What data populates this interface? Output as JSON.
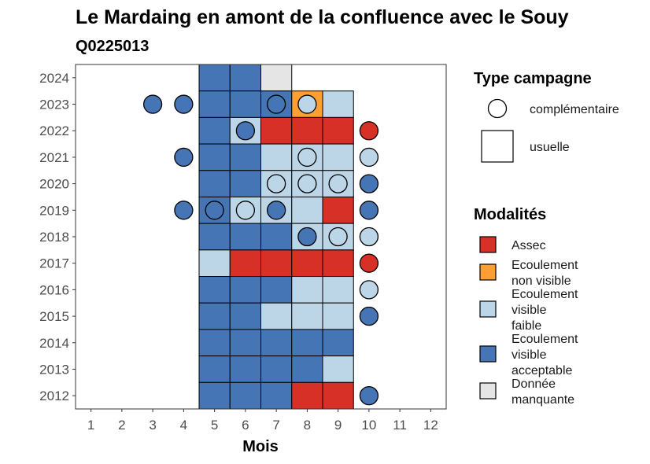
{
  "chart_data": {
    "type": "heatmap",
    "title": "Le Mardaing en amont de la confluence avec le Souy",
    "subtitle": "Q0225013",
    "xlabel": "Mois",
    "ylabel": "",
    "x_ticks": [
      "1",
      "2",
      "3",
      "4",
      "5",
      "6",
      "7",
      "8",
      "9",
      "10",
      "11",
      "12"
    ],
    "y_ticks": [
      "2012",
      "2013",
      "2014",
      "2015",
      "2016",
      "2017",
      "2018",
      "2019",
      "2020",
      "2021",
      "2022",
      "2023",
      "2024"
    ],
    "xlim": [
      0.5,
      12.5
    ],
    "ylim": [
      2011.5,
      2024.5
    ],
    "grid": false,
    "legend_position": "right",
    "colors": {
      "Assec": "#d73027",
      "Ecoulement non visible": "#fd9f33",
      "Ecoulement visible faible": "#bcd6e7",
      "Ecoulement visible acceptable": "#4575b4",
      "Donnée manquante": "#e5e5e5"
    },
    "usuelle": [
      {
        "year": 2024,
        "month": 5,
        "modalite": "Ecoulement visible acceptable"
      },
      {
        "year": 2024,
        "month": 6,
        "modalite": "Ecoulement visible acceptable"
      },
      {
        "year": 2024,
        "month": 7,
        "modalite": "Donnée manquante"
      },
      {
        "year": 2023,
        "month": 5,
        "modalite": "Ecoulement visible acceptable"
      },
      {
        "year": 2023,
        "month": 6,
        "modalite": "Ecoulement visible acceptable"
      },
      {
        "year": 2023,
        "month": 7,
        "modalite": "Ecoulement visible acceptable"
      },
      {
        "year": 2023,
        "month": 8,
        "modalite": "Ecoulement non visible"
      },
      {
        "year": 2023,
        "month": 9,
        "modalite": "Ecoulement visible faible"
      },
      {
        "year": 2022,
        "month": 5,
        "modalite": "Ecoulement visible acceptable"
      },
      {
        "year": 2022,
        "month": 6,
        "modalite": "Ecoulement visible faible"
      },
      {
        "year": 2022,
        "month": 7,
        "modalite": "Assec"
      },
      {
        "year": 2022,
        "month": 8,
        "modalite": "Assec"
      },
      {
        "year": 2022,
        "month": 9,
        "modalite": "Assec"
      },
      {
        "year": 2021,
        "month": 5,
        "modalite": "Ecoulement visible acceptable"
      },
      {
        "year": 2021,
        "month": 6,
        "modalite": "Ecoulement visible acceptable"
      },
      {
        "year": 2021,
        "month": 7,
        "modalite": "Ecoulement visible faible"
      },
      {
        "year": 2021,
        "month": 8,
        "modalite": "Ecoulement visible faible"
      },
      {
        "year": 2021,
        "month": 9,
        "modalite": "Ecoulement visible faible"
      },
      {
        "year": 2020,
        "month": 5,
        "modalite": "Ecoulement visible acceptable"
      },
      {
        "year": 2020,
        "month": 6,
        "modalite": "Ecoulement visible acceptable"
      },
      {
        "year": 2020,
        "month": 7,
        "modalite": "Ecoulement visible faible"
      },
      {
        "year": 2020,
        "month": 8,
        "modalite": "Ecoulement visible faible"
      },
      {
        "year": 2020,
        "month": 9,
        "modalite": "Ecoulement visible faible"
      },
      {
        "year": 2019,
        "month": 5,
        "modalite": "Ecoulement visible acceptable"
      },
      {
        "year": 2019,
        "month": 6,
        "modalite": "Ecoulement visible faible"
      },
      {
        "year": 2019,
        "month": 7,
        "modalite": "Ecoulement visible faible"
      },
      {
        "year": 2019,
        "month": 8,
        "modalite": "Ecoulement visible faible"
      },
      {
        "year": 2019,
        "month": 9,
        "modalite": "Assec"
      },
      {
        "year": 2018,
        "month": 5,
        "modalite": "Ecoulement visible acceptable"
      },
      {
        "year": 2018,
        "month": 6,
        "modalite": "Ecoulement visible acceptable"
      },
      {
        "year": 2018,
        "month": 7,
        "modalite": "Ecoulement visible acceptable"
      },
      {
        "year": 2018,
        "month": 8,
        "modalite": "Ecoulement visible faible"
      },
      {
        "year": 2018,
        "month": 9,
        "modalite": "Ecoulement visible faible"
      },
      {
        "year": 2017,
        "month": 5,
        "modalite": "Ecoulement visible faible"
      },
      {
        "year": 2017,
        "month": 6,
        "modalite": "Assec"
      },
      {
        "year": 2017,
        "month": 7,
        "modalite": "Assec"
      },
      {
        "year": 2017,
        "month": 8,
        "modalite": "Assec"
      },
      {
        "year": 2017,
        "month": 9,
        "modalite": "Assec"
      },
      {
        "year": 2016,
        "month": 5,
        "modalite": "Ecoulement visible acceptable"
      },
      {
        "year": 2016,
        "month": 6,
        "modalite": "Ecoulement visible acceptable"
      },
      {
        "year": 2016,
        "month": 7,
        "modalite": "Ecoulement visible acceptable"
      },
      {
        "year": 2016,
        "month": 8,
        "modalite": "Ecoulement visible faible"
      },
      {
        "year": 2016,
        "month": 9,
        "modalite": "Ecoulement visible faible"
      },
      {
        "year": 2015,
        "month": 5,
        "modalite": "Ecoulement visible acceptable"
      },
      {
        "year": 2015,
        "month": 6,
        "modalite": "Ecoulement visible acceptable"
      },
      {
        "year": 2015,
        "month": 7,
        "modalite": "Ecoulement visible faible"
      },
      {
        "year": 2015,
        "month": 8,
        "modalite": "Ecoulement visible faible"
      },
      {
        "year": 2015,
        "month": 9,
        "modalite": "Ecoulement visible faible"
      },
      {
        "year": 2014,
        "month": 5,
        "modalite": "Ecoulement visible acceptable"
      },
      {
        "year": 2014,
        "month": 6,
        "modalite": "Ecoulement visible acceptable"
      },
      {
        "year": 2014,
        "month": 7,
        "modalite": "Ecoulement visible acceptable"
      },
      {
        "year": 2014,
        "month": 8,
        "modalite": "Ecoulement visible acceptable"
      },
      {
        "year": 2014,
        "month": 9,
        "modalite": "Ecoulement visible acceptable"
      },
      {
        "year": 2013,
        "month": 5,
        "modalite": "Ecoulement visible acceptable"
      },
      {
        "year": 2013,
        "month": 6,
        "modalite": "Ecoulement visible acceptable"
      },
      {
        "year": 2013,
        "month": 7,
        "modalite": "Ecoulement visible acceptable"
      },
      {
        "year": 2013,
        "month": 8,
        "modalite": "Ecoulement visible acceptable"
      },
      {
        "year": 2013,
        "month": 9,
        "modalite": "Ecoulement visible faible"
      },
      {
        "year": 2012,
        "month": 5,
        "modalite": "Ecoulement visible acceptable"
      },
      {
        "year": 2012,
        "month": 6,
        "modalite": "Ecoulement visible acceptable"
      },
      {
        "year": 2012,
        "month": 7,
        "modalite": "Ecoulement visible acceptable"
      },
      {
        "year": 2012,
        "month": 8,
        "modalite": "Assec"
      },
      {
        "year": 2012,
        "month": 9,
        "modalite": "Assec"
      }
    ],
    "complementaire": [
      {
        "year": 2023,
        "month": 3,
        "modalite": "Ecoulement visible acceptable"
      },
      {
        "year": 2023,
        "month": 4,
        "modalite": "Ecoulement visible acceptable"
      },
      {
        "year": 2023,
        "month": 7,
        "modalite": "Ecoulement visible acceptable"
      },
      {
        "year": 2023,
        "month": 8,
        "modalite": "Ecoulement visible faible"
      },
      {
        "year": 2022,
        "month": 6,
        "modalite": "Ecoulement visible acceptable"
      },
      {
        "year": 2022,
        "month": 10,
        "modalite": "Assec"
      },
      {
        "year": 2021,
        "month": 4,
        "modalite": "Ecoulement visible acceptable"
      },
      {
        "year": 2021,
        "month": 8,
        "modalite": "Ecoulement visible faible"
      },
      {
        "year": 2021,
        "month": 10,
        "modalite": "Ecoulement visible faible"
      },
      {
        "year": 2020,
        "month": 7,
        "modalite": "Ecoulement visible faible"
      },
      {
        "year": 2020,
        "month": 8,
        "modalite": "Ecoulement visible faible"
      },
      {
        "year": 2020,
        "month": 9,
        "modalite": "Ecoulement visible faible"
      },
      {
        "year": 2020,
        "month": 10,
        "modalite": "Ecoulement visible acceptable"
      },
      {
        "year": 2019,
        "month": 4,
        "modalite": "Ecoulement visible acceptable"
      },
      {
        "year": 2019,
        "month": 5,
        "modalite": "Ecoulement visible acceptable"
      },
      {
        "year": 2019,
        "month": 6,
        "modalite": "Ecoulement visible faible"
      },
      {
        "year": 2019,
        "month": 7,
        "modalite": "Ecoulement visible acceptable"
      },
      {
        "year": 2019,
        "month": 10,
        "modalite": "Ecoulement visible acceptable"
      },
      {
        "year": 2018,
        "month": 8,
        "modalite": "Ecoulement visible acceptable"
      },
      {
        "year": 2018,
        "month": 9,
        "modalite": "Ecoulement visible faible"
      },
      {
        "year": 2018,
        "month": 10,
        "modalite": "Ecoulement visible faible"
      },
      {
        "year": 2017,
        "month": 10,
        "modalite": "Assec"
      },
      {
        "year": 2016,
        "month": 10,
        "modalite": "Ecoulement visible faible"
      },
      {
        "year": 2015,
        "month": 10,
        "modalite": "Ecoulement visible acceptable"
      },
      {
        "year": 2012,
        "month": 10,
        "modalite": "Ecoulement visible acceptable"
      }
    ],
    "legend_type_campagne": {
      "title": "Type campagne",
      "items": [
        {
          "label": "complémentaire",
          "shape": "circle"
        },
        {
          "label": "usuelle",
          "shape": "square"
        }
      ]
    },
    "legend_modalites": {
      "title": "Modalités",
      "items": [
        {
          "key": "Assec",
          "lines": [
            "Assec"
          ]
        },
        {
          "key": "Ecoulement non visible",
          "lines": [
            "Ecoulement",
            "non visible"
          ]
        },
        {
          "key": "Ecoulement visible faible",
          "lines": [
            "Ecoulement",
            "visible",
            "faible"
          ]
        },
        {
          "key": "Ecoulement visible acceptable",
          "lines": [
            "Ecoulement",
            "visible",
            "acceptable"
          ]
        },
        {
          "key": "Donnée manquante",
          "lines": [
            "Donnée",
            "manquante"
          ]
        }
      ]
    }
  }
}
